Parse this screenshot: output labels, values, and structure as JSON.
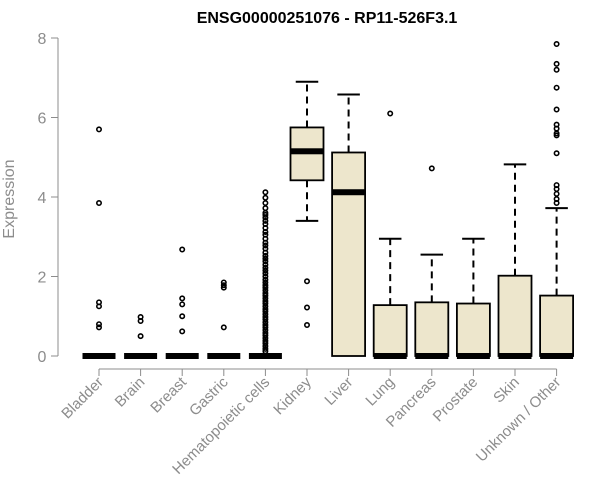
{
  "chart_data": {
    "type": "box",
    "title": "ENSG00000251076 - RP11-526F3.1",
    "xlabel": "",
    "ylabel": "Expression",
    "ylim": [
      0,
      8
    ],
    "yticks": [
      0,
      2,
      4,
      6,
      8
    ],
    "categories": [
      "Bladder",
      "Brain",
      "Breast",
      "Gastric",
      "Hematopoietic cells",
      "Kidney",
      "Liver",
      "Lung",
      "Pancreas",
      "Prostate",
      "Skin",
      "Unknown / Other"
    ],
    "boxes": [
      {
        "category": "Bladder",
        "q1": 0,
        "median": 0,
        "q3": 0,
        "whisker_low": 0,
        "whisker_high": 0,
        "outliers": [
          5.7,
          3.85,
          1.35,
          1.25,
          0.8,
          0.72
        ]
      },
      {
        "category": "Brain",
        "q1": 0,
        "median": 0,
        "q3": 0,
        "whisker_low": 0,
        "whisker_high": 0,
        "outliers": [
          0.98,
          0.88,
          0.5
        ]
      },
      {
        "category": "Breast",
        "q1": 0,
        "median": 0,
        "q3": 0,
        "whisker_low": 0,
        "whisker_high": 0,
        "outliers": [
          2.68,
          1.45,
          1.3,
          1.0,
          0.62
        ]
      },
      {
        "category": "Gastric",
        "q1": 0,
        "median": 0,
        "q3": 0,
        "whisker_low": 0,
        "whisker_high": 0,
        "outliers": [
          1.85,
          1.78,
          1.72,
          0.72
        ]
      },
      {
        "category": "Hematopoietic cells",
        "q1": 0,
        "median": 0,
        "q3": 0,
        "whisker_low": 0,
        "whisker_high": 0,
        "outliers": [
          4.12,
          3.98,
          3.85,
          3.72,
          3.6,
          3.55,
          3.48,
          3.4,
          3.32,
          3.22,
          3.12,
          3.05,
          2.95,
          2.85,
          2.78,
          2.7,
          2.6,
          2.52,
          2.45,
          2.38,
          2.3,
          2.22,
          2.15,
          2.08,
          2.0,
          1.92,
          1.85,
          1.78,
          1.72,
          1.65,
          1.58,
          1.52,
          1.45,
          1.38,
          1.32,
          1.25,
          1.18,
          1.12,
          1.05,
          0.98,
          0.92,
          0.85,
          0.78,
          0.72,
          0.65,
          0.58,
          0.52,
          0.45,
          0.38,
          0.32,
          0.25,
          0.18,
          0.12
        ]
      },
      {
        "category": "Kidney",
        "q1": 4.42,
        "median": 5.15,
        "q3": 5.75,
        "whisker_low": 3.4,
        "whisker_high": 6.9,
        "outliers": [
          1.88,
          1.22,
          0.78
        ]
      },
      {
        "category": "Liver",
        "q1": 0,
        "median": 4.12,
        "q3": 5.12,
        "whisker_low": 0,
        "whisker_high": 6.58,
        "outliers": []
      },
      {
        "category": "Lung",
        "q1": 0,
        "median": 0,
        "q3": 1.28,
        "whisker_low": 0,
        "whisker_high": 2.95,
        "outliers": [
          6.1
        ]
      },
      {
        "category": "Pancreas",
        "q1": 0,
        "median": 0,
        "q3": 1.35,
        "whisker_low": 0,
        "whisker_high": 2.55,
        "outliers": [
          4.72
        ]
      },
      {
        "category": "Prostate",
        "q1": 0,
        "median": 0,
        "q3": 1.32,
        "whisker_low": 0,
        "whisker_high": 2.95,
        "outliers": []
      },
      {
        "category": "Skin",
        "q1": 0,
        "median": 0,
        "q3": 2.02,
        "whisker_low": 0,
        "whisker_high": 4.82,
        "outliers": []
      },
      {
        "category": "Unknown / Other",
        "q1": 0,
        "median": 0,
        "q3": 1.52,
        "whisker_low": 0,
        "whisker_high": 3.72,
        "outliers": [
          7.85,
          7.35,
          7.2,
          6.75,
          6.2,
          5.82,
          5.72,
          5.6,
          5.55,
          5.1,
          4.3,
          4.2,
          4.08,
          3.95,
          3.85
        ]
      }
    ],
    "colors": {
      "box_fill": "#ede6cc",
      "stroke": "#000000",
      "axis": "#8c8c8c"
    }
  }
}
